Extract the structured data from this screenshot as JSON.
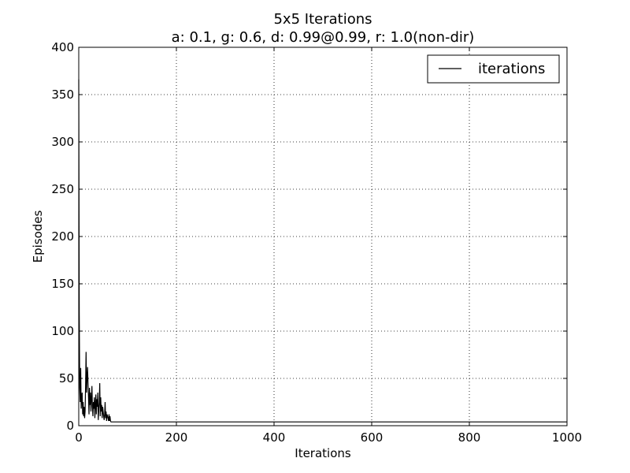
{
  "chart_data": {
    "type": "line",
    "title": "5x5 Iterations",
    "subtitle": "a: 0.1, g: 0.6, d: 0.99@0.99, r: 1.0(non-dir)",
    "xlabel": "Iterations",
    "ylabel": "Episodes",
    "xlim": [
      0,
      1000
    ],
    "ylim": [
      0,
      400
    ],
    "xticks": [
      0,
      200,
      400,
      600,
      800,
      1000
    ],
    "yticks": [
      0,
      50,
      100,
      150,
      200,
      250,
      300,
      350,
      400
    ],
    "grid": true,
    "legend_position": "top-right",
    "series": [
      {
        "name": "iterations",
        "color": "#000000",
        "x": [
          0,
          1,
          2,
          3,
          4,
          5,
          6,
          7,
          8,
          9,
          10,
          11,
          12,
          13,
          14,
          15,
          16,
          17,
          18,
          19,
          20,
          21,
          22,
          23,
          24,
          25,
          26,
          27,
          28,
          29,
          30,
          31,
          32,
          33,
          34,
          35,
          36,
          37,
          38,
          39,
          40,
          41,
          42,
          43,
          44,
          45,
          46,
          47,
          48,
          49,
          50,
          51,
          52,
          53,
          54,
          55,
          56,
          57,
          58,
          59,
          60,
          61,
          62,
          63,
          64,
          65,
          66,
          67,
          68,
          69,
          70,
          1000
        ],
        "y": [
          366,
          120,
          40,
          25,
          61,
          18,
          30,
          35,
          12,
          25,
          10,
          20,
          8,
          15,
          42,
          78,
          35,
          50,
          62,
          45,
          30,
          12,
          40,
          22,
          35,
          15,
          28,
          42,
          20,
          10,
          25,
          18,
          30,
          8,
          22,
          33,
          12,
          28,
          20,
          35,
          6,
          18,
          25,
          45,
          10,
          30,
          15,
          22,
          8,
          20,
          15,
          10,
          6,
          12,
          25,
          8,
          15,
          5,
          12,
          10,
          8,
          5,
          12,
          5,
          10,
          5,
          4,
          4,
          4,
          4,
          4,
          4
        ]
      }
    ]
  }
}
